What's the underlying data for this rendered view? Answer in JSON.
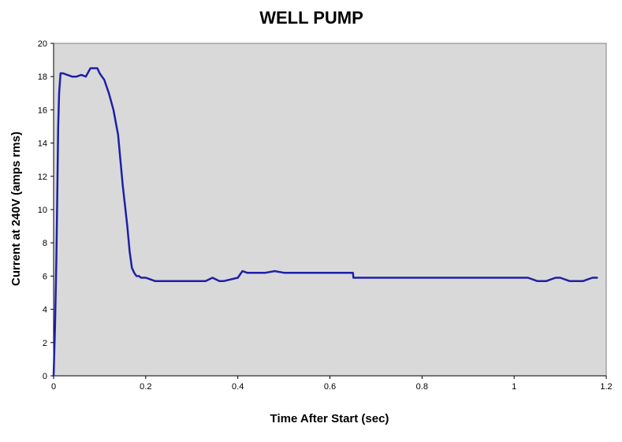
{
  "chart_data": {
    "type": "line",
    "title": "WELL PUMP",
    "xlabel": "Time After Start (sec)",
    "ylabel": "Current at 240V (amps rms)",
    "xlim": [
      0,
      1.2
    ],
    "ylim": [
      0,
      20
    ],
    "x_ticks": [
      0,
      0.2,
      0.4,
      0.6,
      0.8,
      1,
      1.2
    ],
    "x_tick_labels": [
      "0",
      "0.2",
      "0.4",
      "0.6",
      "0.8",
      "1",
      "1.2"
    ],
    "y_ticks": [
      0,
      2,
      4,
      6,
      8,
      10,
      12,
      14,
      16,
      18,
      20
    ],
    "y_tick_labels": [
      "0",
      "2",
      "4",
      "6",
      "8",
      "10",
      "12",
      "14",
      "16",
      "18",
      "20"
    ],
    "grid": false,
    "legend": false,
    "colors": {
      "plot_background": "#d9d9d9",
      "line": "#1f1fa8",
      "axis": "#000000"
    },
    "series": [
      {
        "x": [
          0,
          0.003,
          0.006,
          0.008,
          0.01,
          0.012,
          0.015,
          0.018,
          0.02,
          0.03,
          0.04,
          0.05,
          0.06,
          0.07,
          0.08,
          0.085,
          0.09,
          0.095,
          0.1,
          0.105,
          0.11,
          0.12,
          0.13,
          0.14,
          0.15,
          0.16,
          0.165,
          0.17,
          0.175,
          0.18,
          0.185,
          0.19,
          0.2,
          0.21,
          0.22,
          0.25,
          0.3,
          0.33,
          0.345,
          0.36,
          0.37,
          0.4,
          0.41,
          0.42,
          0.44,
          0.46,
          0.48,
          0.5,
          0.55,
          0.6,
          0.65,
          0.651,
          0.7,
          0.8,
          0.9,
          1.0,
          1.03,
          1.05,
          1.07,
          1.09,
          1.1,
          1.12,
          1.15,
          1.16,
          1.17,
          1.18
        ],
        "y": [
          0,
          3,
          7,
          11,
          15,
          17,
          18.2,
          18.2,
          18.2,
          18.1,
          18.0,
          18.0,
          18.1,
          18.0,
          18.5,
          18.5,
          18.5,
          18.5,
          18.2,
          18.0,
          17.8,
          17.0,
          16.0,
          14.5,
          11.5,
          9.0,
          7.5,
          6.5,
          6.2,
          6.0,
          6.0,
          5.9,
          5.9,
          5.8,
          5.7,
          5.7,
          5.7,
          5.7,
          5.9,
          5.7,
          5.7,
          5.9,
          6.3,
          6.2,
          6.2,
          6.2,
          6.3,
          6.2,
          6.2,
          6.2,
          6.2,
          5.9,
          5.9,
          5.9,
          5.9,
          5.9,
          5.9,
          5.7,
          5.7,
          5.9,
          5.9,
          5.7,
          5.7,
          5.8,
          5.9,
          5.9
        ]
      }
    ]
  }
}
